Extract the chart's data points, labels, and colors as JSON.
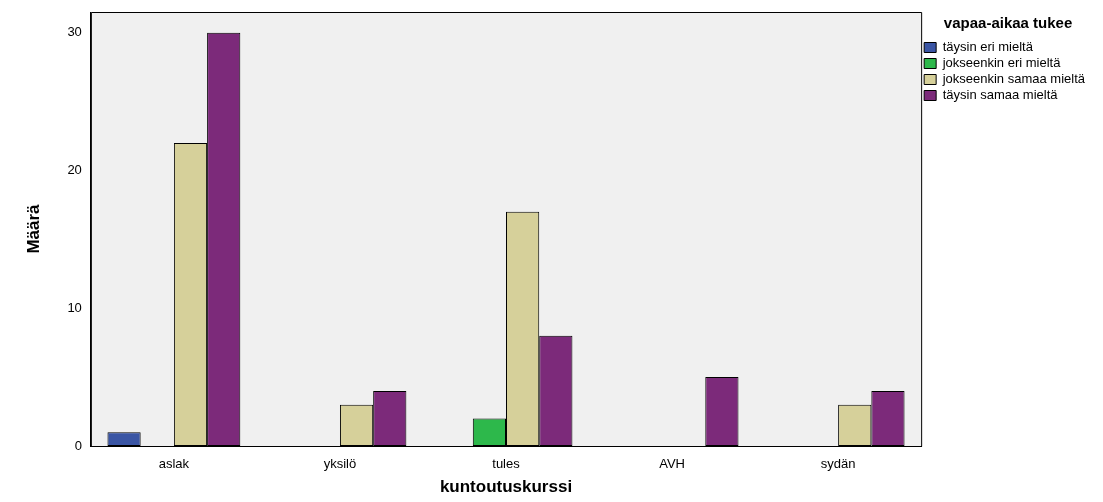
{
  "chart_data": {
    "type": "bar",
    "xlabel": "kuntoutuskurssi",
    "ylabel": "Määrä",
    "legend_title": "vapaa-aikaa tukee",
    "categories": [
      "aslak",
      "yksilö",
      "tules",
      "AVH",
      "sydän"
    ],
    "series": [
      {
        "name": "täysin eri mieltä",
        "color": "#3a55a4",
        "values": [
          1,
          null,
          null,
          null,
          null
        ]
      },
      {
        "name": "jokseenkin eri mieltä",
        "color": "#2db84b",
        "values": [
          null,
          null,
          2,
          null,
          null
        ]
      },
      {
        "name": "jokseenkin samaa mieltä",
        "color": "#d6d09a",
        "values": [
          22,
          3,
          17,
          null,
          3
        ]
      },
      {
        "name": "täysin samaa mieltä",
        "color": "#7c2a7a",
        "values": [
          30,
          4,
          8,
          5,
          4
        ]
      }
    ],
    "ylim": [
      0,
      31.5
    ],
    "yticks": [
      0,
      10,
      20,
      30
    ],
    "grid": false,
    "legend": "top right"
  }
}
